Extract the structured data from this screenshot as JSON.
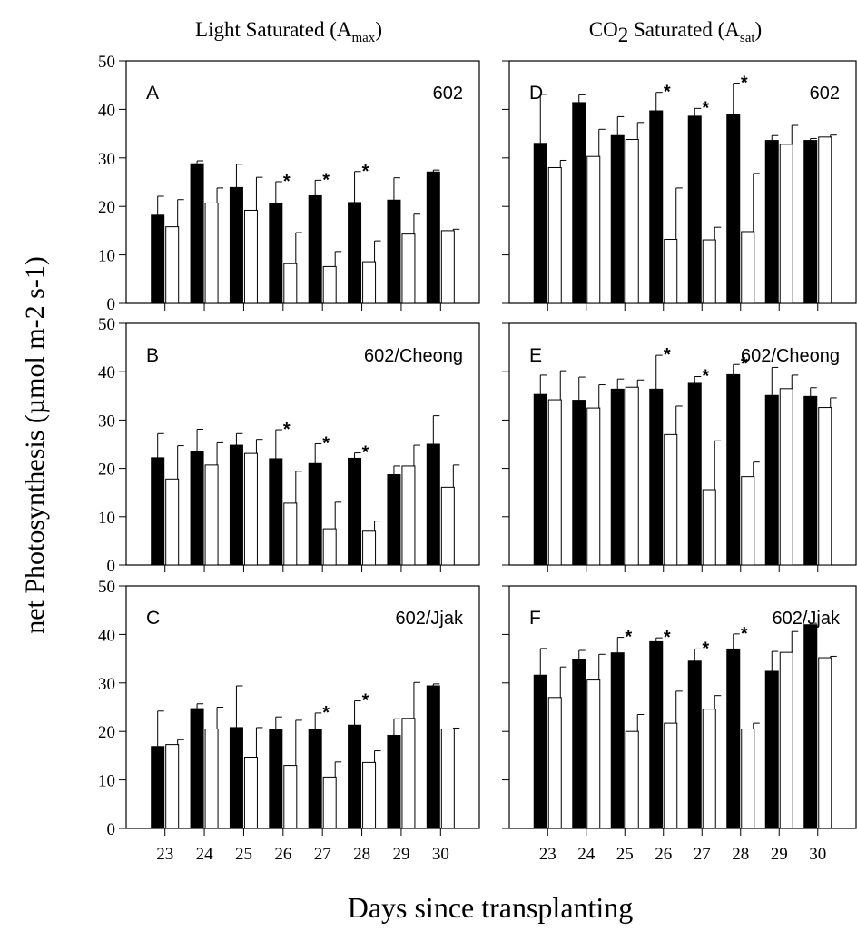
{
  "figure": {
    "col_left_title": {
      "main": "Light Saturated (A",
      "sub": "max",
      "close": ")"
    },
    "col_right_title": {
      "pre": "CO",
      "sub2": "2",
      "main": " Saturated (A",
      "sub": "sat",
      "close": ")"
    },
    "y_label": "net Photosynthesis (µmol m-2 s-1)",
    "x_label": "Days since transplanting"
  },
  "chart_data": [
    {
      "type": "bar",
      "panel": "A",
      "label": "602",
      "column": "left",
      "row": 0,
      "categories": [
        "23",
        "24",
        "25",
        "26",
        "27",
        "28",
        "29",
        "30"
      ],
      "ylim": [
        0,
        50
      ],
      "yticks": [
        0,
        10,
        20,
        30,
        40,
        50
      ],
      "show_ytick_labels": true,
      "show_xtick_labels": false,
      "series": [
        {
          "fill": "#000000",
          "values": [
            18.2,
            28.8,
            23.9,
            20.7,
            22.2,
            20.8,
            21.3,
            27.1
          ],
          "errors": [
            3.9,
            0.6,
            4.8,
            4.4,
            3.2,
            6.4,
            4.6,
            0.4
          ]
        },
        {
          "fill": "#ffffff",
          "values": [
            15.8,
            20.7,
            19.2,
            8.2,
            7.6,
            8.6,
            14.3,
            15.0
          ],
          "errors": [
            5.6,
            3.1,
            6.8,
            6.4,
            3.1,
            4.3,
            4.1,
            0.3
          ]
        }
      ],
      "asterisks": [
        "26",
        "27",
        "28"
      ]
    },
    {
      "type": "bar",
      "panel": "B",
      "label": "602/Cheong",
      "column": "left",
      "row": 1,
      "categories": [
        "23",
        "24",
        "25",
        "26",
        "27",
        "28",
        "29",
        "30"
      ],
      "ylim": [
        0,
        50
      ],
      "yticks": [
        0,
        10,
        20,
        30,
        40,
        50
      ],
      "show_ytick_labels": true,
      "show_xtick_labels": false,
      "series": [
        {
          "fill": "#000000",
          "values": [
            22.2,
            23.4,
            24.8,
            22.0,
            21.0,
            22.1,
            18.7,
            25.0
          ],
          "errors": [
            5.0,
            4.7,
            2.4,
            6.0,
            4.1,
            1.1,
            1.8,
            5.9
          ]
        },
        {
          "fill": "#ffffff",
          "values": [
            17.8,
            20.7,
            23.1,
            12.8,
            7.5,
            7.0,
            20.5,
            16.1
          ],
          "errors": [
            6.9,
            4.6,
            2.9,
            6.6,
            5.5,
            2.1,
            4.3,
            4.6
          ]
        }
      ],
      "asterisks": [
        "26",
        "27",
        "28"
      ]
    },
    {
      "type": "bar",
      "panel": "C",
      "label": "602/Jjak",
      "column": "left",
      "row": 2,
      "categories": [
        "23",
        "24",
        "25",
        "26",
        "27",
        "28",
        "29",
        "30"
      ],
      "ylim": [
        0,
        50
      ],
      "yticks": [
        0,
        10,
        20,
        30,
        40,
        50
      ],
      "show_ytick_labels": true,
      "show_xtick_labels": true,
      "series": [
        {
          "fill": "#000000",
          "values": [
            16.9,
            24.7,
            20.8,
            20.4,
            20.4,
            21.3,
            19.2,
            29.4
          ],
          "errors": [
            7.3,
            1.0,
            8.6,
            2.6,
            3.4,
            5.0,
            3.4,
            0.4
          ]
        },
        {
          "fill": "#ffffff",
          "values": [
            17.3,
            20.5,
            14.7,
            13.0,
            10.6,
            13.6,
            22.7,
            20.5
          ],
          "errors": [
            1.0,
            4.5,
            6.1,
            9.3,
            3.1,
            2.4,
            7.4,
            0.2
          ]
        }
      ],
      "asterisks": [
        "27",
        "28"
      ]
    },
    {
      "type": "bar",
      "panel": "D",
      "label": "602",
      "column": "right",
      "row": 0,
      "categories": [
        "23",
        "24",
        "25",
        "26",
        "27",
        "28",
        "29",
        "30"
      ],
      "ylim": [
        0,
        50
      ],
      "yticks": [
        0,
        10,
        20,
        30,
        40,
        50
      ],
      "show_ytick_labels": false,
      "show_xtick_labels": false,
      "series": [
        {
          "fill": "#000000",
          "values": [
            33.0,
            41.4,
            34.6,
            39.7,
            38.6,
            38.9,
            33.6,
            33.6
          ],
          "errors": [
            10.1,
            1.6,
            3.9,
            3.8,
            1.6,
            6.5,
            1.0,
            0.4
          ]
        },
        {
          "fill": "#ffffff",
          "values": [
            28.0,
            30.3,
            33.8,
            13.2,
            13.1,
            14.8,
            32.8,
            34.3
          ],
          "errors": [
            1.5,
            5.6,
            3.5,
            10.6,
            2.6,
            12.0,
            3.9,
            0.4
          ]
        }
      ],
      "asterisks": [
        "26",
        "27",
        "28"
      ]
    },
    {
      "type": "bar",
      "panel": "E",
      "label": "602/Cheong",
      "column": "right",
      "row": 1,
      "categories": [
        "23",
        "24",
        "25",
        "26",
        "27",
        "28",
        "29",
        "30"
      ],
      "ylim": [
        0,
        50
      ],
      "yticks": [
        0,
        10,
        20,
        30,
        40,
        50
      ],
      "show_ytick_labels": false,
      "show_xtick_labels": false,
      "series": [
        {
          "fill": "#000000",
          "values": [
            35.3,
            34.1,
            36.4,
            36.4,
            37.6,
            39.4,
            35.1,
            34.9
          ],
          "errors": [
            4.0,
            4.8,
            2.1,
            7.0,
            1.4,
            2.1,
            5.8,
            1.8
          ]
        },
        {
          "fill": "#ffffff",
          "values": [
            34.2,
            32.5,
            36.8,
            27.0,
            15.6,
            18.3,
            36.5,
            32.6
          ],
          "errors": [
            6.0,
            4.8,
            1.5,
            5.9,
            10.1,
            3.0,
            2.8,
            2.0
          ]
        }
      ],
      "asterisks": [
        "26",
        "27",
        "28"
      ]
    },
    {
      "type": "bar",
      "panel": "F",
      "label": "602/Jjak",
      "column": "right",
      "row": 2,
      "categories": [
        "23",
        "24",
        "25",
        "26",
        "27",
        "28",
        "29",
        "30"
      ],
      "ylim": [
        0,
        50
      ],
      "yticks": [
        0,
        10,
        20,
        30,
        40,
        50
      ],
      "show_ytick_labels": false,
      "show_xtick_labels": true,
      "series": [
        {
          "fill": "#000000",
          "values": [
            31.6,
            34.9,
            36.2,
            38.5,
            34.5,
            37.0,
            32.4,
            42.0
          ],
          "errors": [
            5.5,
            1.8,
            3.2,
            0.8,
            2.5,
            3.1,
            4.1,
            0.3
          ]
        },
        {
          "fill": "#ffffff",
          "values": [
            27.0,
            30.6,
            20.0,
            21.7,
            24.6,
            20.5,
            36.3,
            35.2
          ],
          "errors": [
            6.3,
            5.3,
            3.5,
            6.6,
            2.8,
            1.2,
            4.3,
            0.3
          ]
        }
      ],
      "asterisks": [
        "25",
        "26",
        "27",
        "28"
      ]
    }
  ]
}
